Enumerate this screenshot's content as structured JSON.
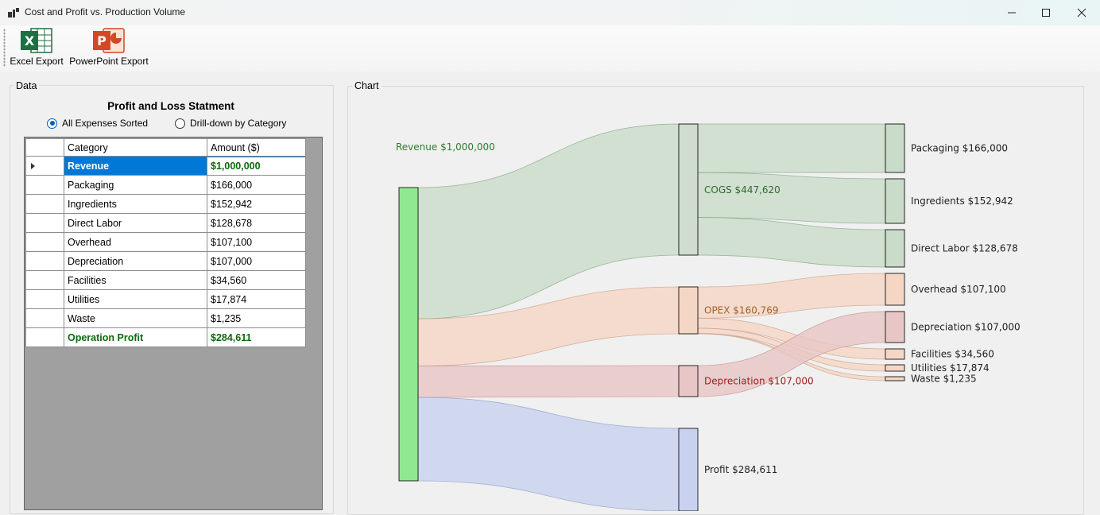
{
  "window": {
    "title": "Cost and Profit vs. Production Volume"
  },
  "toolbar": {
    "excel_label": "Excel Export",
    "excel_glyph": "X",
    "ppt_label": "PowerPoint Export",
    "ppt_glyph": "P"
  },
  "data_group": {
    "label": "Data",
    "title": "Profit and Loss Statment",
    "radio_sorted": "All Expenses Sorted",
    "radio_drill": "Drill-down by Category",
    "selected_radio": "All Expenses Sorted",
    "columns": [
      "Category",
      "Amount ($)"
    ],
    "rows": [
      {
        "category": "Revenue",
        "amount": "$1,000,000"
      },
      {
        "category": "Packaging",
        "amount": "$166,000"
      },
      {
        "category": "Ingredients",
        "amount": "$152,942"
      },
      {
        "category": "Direct Labor",
        "amount": "$128,678"
      },
      {
        "category": "Overhead",
        "amount": "$107,100"
      },
      {
        "category": "Depreciation",
        "amount": "$107,000"
      },
      {
        "category": "Facilities",
        "amount": "$34,560"
      },
      {
        "category": "Utilities",
        "amount": "$17,874"
      },
      {
        "category": "Waste",
        "amount": "$1,235"
      },
      {
        "category": "Operation Profit",
        "amount": "$284,611"
      }
    ]
  },
  "chart_group": {
    "label": "Chart"
  },
  "chart_data": {
    "type": "sankey",
    "colors": {
      "cogs": "#c9dcc9",
      "opex": "#f5d6c4",
      "depreciation": "#e9c6c6",
      "profit": "#c8d2f0",
      "revenue_node": "#90e890",
      "node": "#cfdccf"
    },
    "nodes": [
      {
        "id": "revenue",
        "label": "Revenue $1,000,000",
        "value": 1000000
      },
      {
        "id": "cogs",
        "label": "COGS $447,620",
        "value": 447620
      },
      {
        "id": "opex",
        "label": "OPEX $160,769",
        "value": 160769
      },
      {
        "id": "dep_mid",
        "label": "Depreciation $107,000",
        "value": 107000
      },
      {
        "id": "profit",
        "label": "Profit $284,611",
        "value": 284611
      },
      {
        "id": "packaging",
        "label": "Packaging $166,000",
        "value": 166000
      },
      {
        "id": "ingredients",
        "label": "Ingredients $152,942",
        "value": 152942
      },
      {
        "id": "labor",
        "label": "Direct Labor $128,678",
        "value": 128678
      },
      {
        "id": "overhead",
        "label": "Overhead $107,100",
        "value": 107100
      },
      {
        "id": "dep_right",
        "label": "Depreciation $107,000",
        "value": 107000
      },
      {
        "id": "facilities",
        "label": "Facilities $34,560",
        "value": 34560
      },
      {
        "id": "utilities",
        "label": "Utilities $17,874",
        "value": 17874
      },
      {
        "id": "waste",
        "label": "Waste $1,235",
        "value": 1235
      }
    ],
    "links": [
      {
        "source": "revenue",
        "target": "cogs",
        "value": 447620
      },
      {
        "source": "revenue",
        "target": "opex",
        "value": 160769
      },
      {
        "source": "revenue",
        "target": "dep_mid",
        "value": 107000
      },
      {
        "source": "revenue",
        "target": "profit",
        "value": 284611
      },
      {
        "source": "cogs",
        "target": "packaging",
        "value": 166000
      },
      {
        "source": "cogs",
        "target": "ingredients",
        "value": 152942
      },
      {
        "source": "cogs",
        "target": "labor",
        "value": 128678
      },
      {
        "source": "opex",
        "target": "overhead",
        "value": 107100
      },
      {
        "source": "opex",
        "target": "facilities",
        "value": 34560
      },
      {
        "source": "opex",
        "target": "utilities",
        "value": 17874
      },
      {
        "source": "opex",
        "target": "waste",
        "value": 1235
      },
      {
        "source": "dep_mid",
        "target": "dep_right",
        "value": 107000
      }
    ]
  }
}
